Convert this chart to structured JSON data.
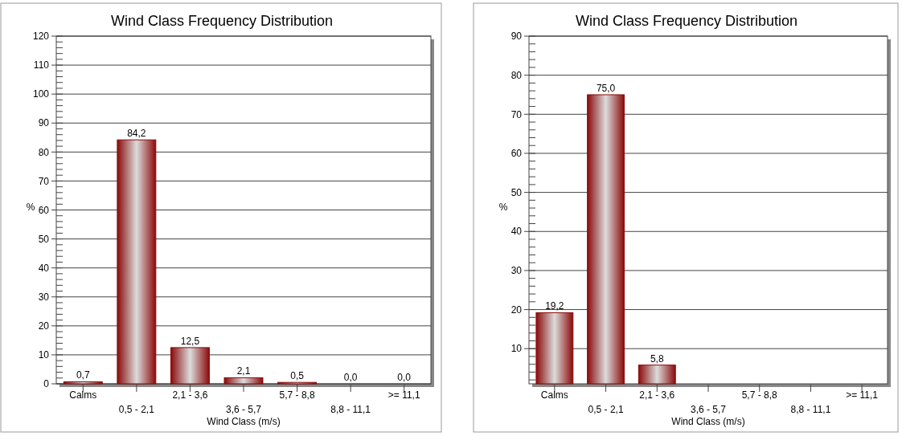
{
  "chart_data": [
    {
      "type": "bar",
      "title": "Wind Class Frequency Distribution",
      "xlabel": "Wind Class (m/s)",
      "ylabel": "%",
      "categories": [
        "Calms",
        "0,5 -  2,1",
        "2,1 -  3,6",
        "3,6 -  5,7",
        "5,7 -  8,8",
        "8,8 - 11,1",
        ">= 11,1"
      ],
      "values": [
        0.7,
        84.2,
        12.5,
        2.1,
        0.5,
        0.0,
        0.0
      ],
      "value_labels": [
        "0,7",
        "84,2",
        "12,5",
        "2,1",
        "0,5",
        "0,0",
        "0,0"
      ],
      "color": "#8b0a0a",
      "ylim": [
        0,
        120
      ],
      "yticks": [
        0,
        10,
        20,
        30,
        40,
        50,
        60,
        70,
        80,
        90,
        100,
        110,
        120
      ],
      "grid": "y"
    },
    {
      "type": "bar",
      "title": "Wind Class Frequency Distribution",
      "xlabel": "Wind Class (m/s)",
      "ylabel": "%",
      "categories": [
        "Calms",
        "0,5 -  2,1",
        "2,1 -  3,6",
        "3,6 -  5,7",
        "5,7 -  8,8",
        "8,8 - 11,1",
        ">= 11,1"
      ],
      "values": [
        19.2,
        75.0,
        5.8,
        null,
        null,
        null,
        null
      ],
      "value_labels": [
        "19,2",
        "75,0",
        "5,8",
        null,
        null,
        null,
        null
      ],
      "color": "#8b0a0a",
      "ylim": [
        1,
        90
      ],
      "yticks": [
        10,
        20,
        30,
        40,
        50,
        60,
        70,
        80,
        90
      ],
      "grid": "y"
    }
  ]
}
